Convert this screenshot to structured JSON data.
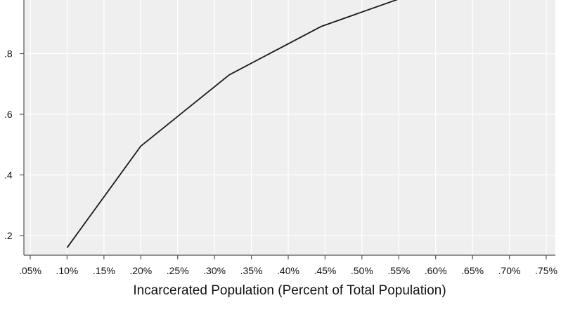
{
  "chart_data": {
    "type": "line",
    "title": "",
    "xlabel": "Incarcerated Population (Percent of Total Population)",
    "ylabel": "",
    "xlim": [
      0.05,
      0.75
    ],
    "x_ticks": [
      0.05,
      0.1,
      0.15,
      0.2,
      0.25,
      0.3,
      0.35,
      0.4,
      0.45,
      0.5,
      0.55,
      0.6,
      0.65,
      0.7,
      0.75
    ],
    "x_tick_labels": [
      ".05%",
      ".10%",
      ".15%",
      ".20%",
      ".25%",
      ".30%",
      ".35%",
      ".40%",
      ".45%",
      ".50%",
      ".55%",
      ".60%",
      ".65%",
      ".70%",
      ".75%"
    ],
    "y_ticks": [
      0.2,
      0.4,
      0.6,
      0.8
    ],
    "y_tick_labels": [
      ".2",
      ".4",
      ".6",
      ".8"
    ],
    "grid": true,
    "series": [
      {
        "x": [
          0.1,
          0.2,
          0.32,
          0.445,
          0.55
        ],
        "y": [
          0.16,
          0.495,
          0.73,
          0.89,
          0.98
        ]
      }
    ]
  },
  "colors": {
    "plot_background": "#efefef",
    "gridline": "#ffffff",
    "line": "#1a1a1a",
    "axis": "#555555"
  }
}
